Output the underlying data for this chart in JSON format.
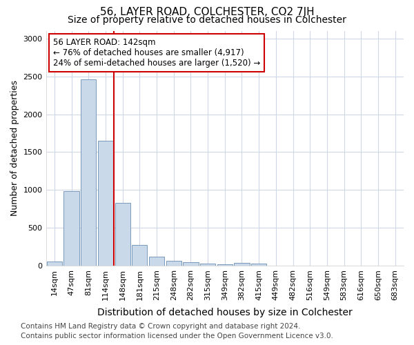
{
  "title": "56, LAYER ROAD, COLCHESTER, CO2 7JH",
  "subtitle": "Size of property relative to detached houses in Colchester",
  "xlabel": "Distribution of detached houses by size in Colchester",
  "ylabel": "Number of detached properties",
  "categories": [
    "14sqm",
    "47sqm",
    "81sqm",
    "114sqm",
    "148sqm",
    "181sqm",
    "215sqm",
    "248sqm",
    "282sqm",
    "315sqm",
    "349sqm",
    "382sqm",
    "415sqm",
    "449sqm",
    "482sqm",
    "516sqm",
    "549sqm",
    "583sqm",
    "616sqm",
    "650sqm",
    "683sqm"
  ],
  "values": [
    50,
    980,
    2460,
    1650,
    830,
    270,
    115,
    60,
    45,
    30,
    20,
    40,
    25,
    0,
    0,
    0,
    0,
    0,
    0,
    0,
    0
  ],
  "bar_color": "#c9d9ea",
  "bar_edge_color": "#7799bb",
  "vline_color": "#cc0000",
  "vline_pos": 4.0,
  "annotation_text": "56 LAYER ROAD: 142sqm\n← 76% of detached houses are smaller (4,917)\n24% of semi-detached houses are larger (1,520) →",
  "annotation_box_facecolor": "#ffffff",
  "annotation_box_edgecolor": "#cc0000",
  "ylim": [
    0,
    3100
  ],
  "yticks": [
    0,
    500,
    1000,
    1500,
    2000,
    2500,
    3000
  ],
  "background_color": "#ffffff",
  "plot_bg_color": "#ffffff",
  "grid_color": "#d0d8e8",
  "title_fontsize": 11,
  "subtitle_fontsize": 10,
  "ylabel_fontsize": 9,
  "xlabel_fontsize": 10,
  "tick_fontsize": 8,
  "annotation_fontsize": 8.5,
  "footer_fontsize": 7.5,
  "footer_line1": "Contains HM Land Registry data © Crown copyright and database right 2024.",
  "footer_line2": "Contains public sector information licensed under the Open Government Licence v3.0."
}
